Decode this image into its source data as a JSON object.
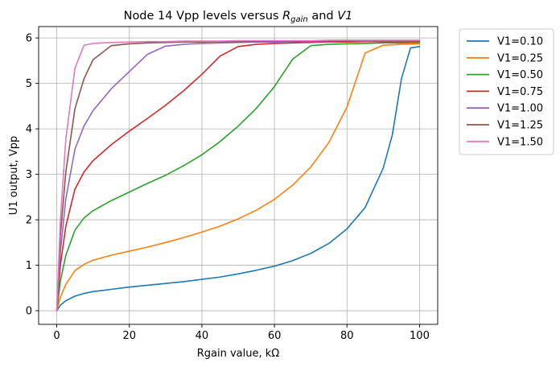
{
  "chart_data": {
    "type": "line",
    "title": "Node 14 Vpp levels versus ",
    "title_math_1": "R",
    "title_math_1_sub": "gain",
    "title_and": " and ",
    "title_math_2": "V1",
    "xlabel": "Rgain value, kΩ",
    "ylabel": "U1 output, Vpp",
    "xlim": [
      -5,
      105
    ],
    "ylim": [
      -0.3,
      6.25
    ],
    "xticks": [
      0,
      20,
      40,
      60,
      80,
      100
    ],
    "yticks": [
      0,
      1,
      2,
      3,
      4,
      5,
      6
    ],
    "grid": true,
    "legend_position": "outside-top-right",
    "series": [
      {
        "name": "V1=0.10",
        "color": "#1f77b4",
        "x": [
          0,
          1,
          2.5,
          5,
          7.5,
          10,
          15,
          20,
          25,
          30,
          35,
          40,
          45,
          50,
          55,
          60,
          65,
          70,
          75,
          80,
          85,
          90,
          92.5,
          95,
          97.5,
          100
        ],
        "y": [
          0,
          0.12,
          0.22,
          0.32,
          0.38,
          0.42,
          0.47,
          0.52,
          0.56,
          0.6,
          0.64,
          0.69,
          0.74,
          0.81,
          0.89,
          0.98,
          1.1,
          1.26,
          1.48,
          1.8,
          2.27,
          3.14,
          3.87,
          5.1,
          5.78,
          5.81
        ]
      },
      {
        "name": "V1=0.25",
        "color": "#ff7f0e",
        "x": [
          0,
          1,
          2.5,
          5,
          7.5,
          10,
          15,
          20,
          25,
          30,
          35,
          40,
          45,
          50,
          55,
          60,
          65,
          70,
          75,
          80,
          85,
          90,
          95,
          100
        ],
        "y": [
          0,
          0.3,
          0.58,
          0.88,
          1.02,
          1.11,
          1.22,
          1.31,
          1.4,
          1.5,
          1.61,
          1.73,
          1.86,
          2.02,
          2.21,
          2.45,
          2.76,
          3.16,
          3.7,
          4.48,
          5.67,
          5.84,
          5.86,
          5.87
        ]
      },
      {
        "name": "V1=0.50",
        "color": "#2ca02c",
        "x": [
          0,
          1,
          2.5,
          5,
          7.5,
          10,
          15,
          20,
          25,
          30,
          35,
          40,
          45,
          50,
          55,
          60,
          65,
          70,
          75,
          80,
          85,
          90,
          95,
          100
        ],
        "y": [
          0,
          0.65,
          1.22,
          1.77,
          2.04,
          2.2,
          2.42,
          2.61,
          2.8,
          2.98,
          3.19,
          3.43,
          3.72,
          4.06,
          4.45,
          4.93,
          5.53,
          5.83,
          5.86,
          5.87,
          5.88,
          5.89,
          5.89,
          5.9
        ]
      },
      {
        "name": "V1=0.75",
        "color": "#d62728",
        "x": [
          0,
          1,
          2.5,
          5,
          7.5,
          10,
          15,
          20,
          25,
          30,
          35,
          40,
          45,
          50,
          55,
          60,
          65,
          70,
          75,
          80,
          85,
          90,
          95,
          100
        ],
        "y": [
          0,
          1.0,
          1.86,
          2.67,
          3.05,
          3.3,
          3.65,
          3.95,
          4.23,
          4.52,
          4.84,
          5.2,
          5.6,
          5.81,
          5.86,
          5.88,
          5.89,
          5.9,
          5.91,
          5.91,
          5.92,
          5.92,
          5.92,
          5.92
        ]
      },
      {
        "name": "V1=1.00",
        "color": "#9467bd",
        "x": [
          0,
          1,
          2.5,
          5,
          7.5,
          10,
          15,
          20,
          25,
          30,
          35,
          40,
          45,
          50,
          55,
          60,
          65,
          70,
          75,
          80,
          85,
          90,
          95,
          100
        ],
        "y": [
          0,
          1.3,
          2.46,
          3.55,
          4.06,
          4.4,
          4.88,
          5.26,
          5.64,
          5.82,
          5.86,
          5.88,
          5.89,
          5.9,
          5.91,
          5.91,
          5.92,
          5.92,
          5.92,
          5.93,
          5.93,
          5.93,
          5.93,
          5.93
        ]
      },
      {
        "name": "V1=1.25",
        "color": "#8c564b",
        "x": [
          0,
          1,
          2.5,
          5,
          7.5,
          10,
          15,
          20,
          25,
          30,
          35,
          40,
          45,
          50,
          55,
          60,
          65,
          70,
          75,
          80,
          85,
          90,
          95,
          100
        ],
        "y": [
          0,
          1.65,
          3.05,
          4.44,
          5.1,
          5.52,
          5.83,
          5.87,
          5.89,
          5.9,
          5.91,
          5.91,
          5.92,
          5.92,
          5.92,
          5.93,
          5.93,
          5.93,
          5.93,
          5.93,
          5.94,
          5.94,
          5.94,
          5.94
        ]
      },
      {
        "name": "V1=1.50",
        "color": "#e377c2",
        "x": [
          0,
          1,
          2.5,
          5,
          7.5,
          10,
          15,
          20,
          25,
          30,
          35,
          40,
          45,
          50,
          55,
          60,
          65,
          70,
          75,
          80,
          85,
          90,
          95,
          100
        ],
        "y": [
          0,
          2.0,
          3.78,
          5.33,
          5.84,
          5.88,
          5.9,
          5.91,
          5.92,
          5.92,
          5.93,
          5.93,
          5.93,
          5.94,
          5.94,
          5.94,
          5.94,
          5.94,
          5.95,
          5.95,
          5.95,
          5.95,
          5.95,
          5.95
        ]
      }
    ]
  }
}
